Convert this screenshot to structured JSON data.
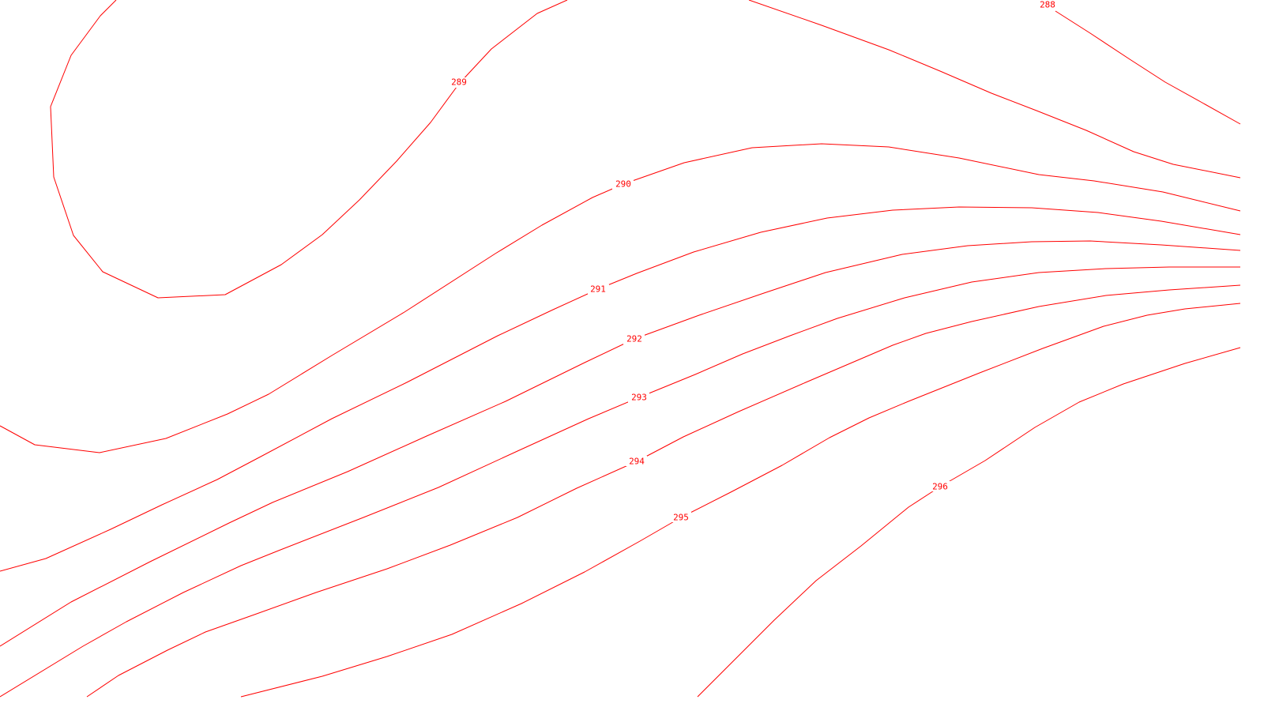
{
  "colors": {
    "contour": "#ff0000",
    "background": "#ffffff"
  },
  "contours": [
    {
      "value": "288",
      "label": "288"
    },
    {
      "value": "289",
      "label": "289"
    },
    {
      "value": "290",
      "label": "290"
    },
    {
      "value": "291",
      "label": "291"
    },
    {
      "value": "292",
      "label": "292"
    },
    {
      "value": "293",
      "label": "293"
    },
    {
      "value": "294",
      "label": "294"
    },
    {
      "value": "295",
      "label": "295"
    },
    {
      "value": "296",
      "label": "296"
    }
  ]
}
